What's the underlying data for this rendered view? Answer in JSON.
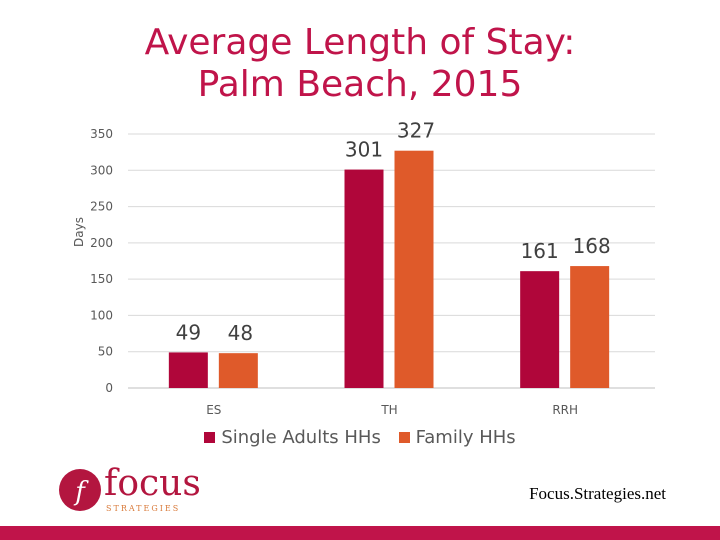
{
  "colors": {
    "title": "#c0144a",
    "series_single": "#b0063a",
    "series_family": "#df5a2a",
    "footer_bar": "#c0144a"
  },
  "chart_data": {
    "type": "bar",
    "title": "Average Length of Stay: Palm Beach, 2015",
    "title_lines": [
      "Average Length of Stay:",
      "Palm Beach, 2015"
    ],
    "ylabel": "Days",
    "xlabel": "",
    "ylim": [
      0,
      350
    ],
    "yticks": [
      0,
      50,
      100,
      150,
      200,
      250,
      300,
      350
    ],
    "grid": true,
    "legend": "bottom",
    "categories": [
      "ES",
      "TH",
      "RRH"
    ],
    "series": [
      {
        "name": "Single Adults HHs",
        "values": [
          49,
          301,
          161
        ],
        "color": "#b0063a"
      },
      {
        "name": "Family HHs",
        "values": [
          48,
          327,
          168
        ],
        "color": "#df5a2a"
      }
    ]
  },
  "logo": {
    "main": "focus",
    "sub": "STRATEGIES",
    "mark": "f"
  },
  "footer": {
    "url": "Focus.Strategies.net"
  }
}
